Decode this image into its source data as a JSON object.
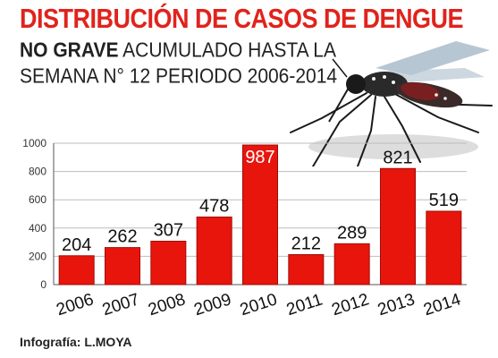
{
  "header": {
    "title": "DISTRIBUCIÓN DE CASOS DE DENGUE",
    "subtitle_bold": "NO GRAVE",
    "subtitle_rest": "ACUMULADO HASTA LA",
    "subtitle_line2": "SEMANA N° 12 PERIODO 2006-2014"
  },
  "credit": "Infografía: L.MOYA",
  "image": {
    "icon": "mosquito-illustration"
  },
  "colors": {
    "bar": "#e8150d",
    "title": "#e0231c",
    "grid": "#bdbdbd",
    "value_bg": "#e8150d"
  },
  "chart_data": {
    "type": "bar",
    "categories": [
      "2006",
      "2007",
      "2008",
      "2009",
      "2010",
      "2011",
      "2012",
      "2013",
      "2014"
    ],
    "values": [
      204,
      262,
      307,
      478,
      987,
      212,
      289,
      821,
      519
    ],
    "yticks": [
      0,
      200,
      400,
      600,
      800,
      1000
    ],
    "ylim": [
      0,
      1000
    ],
    "grid": true
  }
}
